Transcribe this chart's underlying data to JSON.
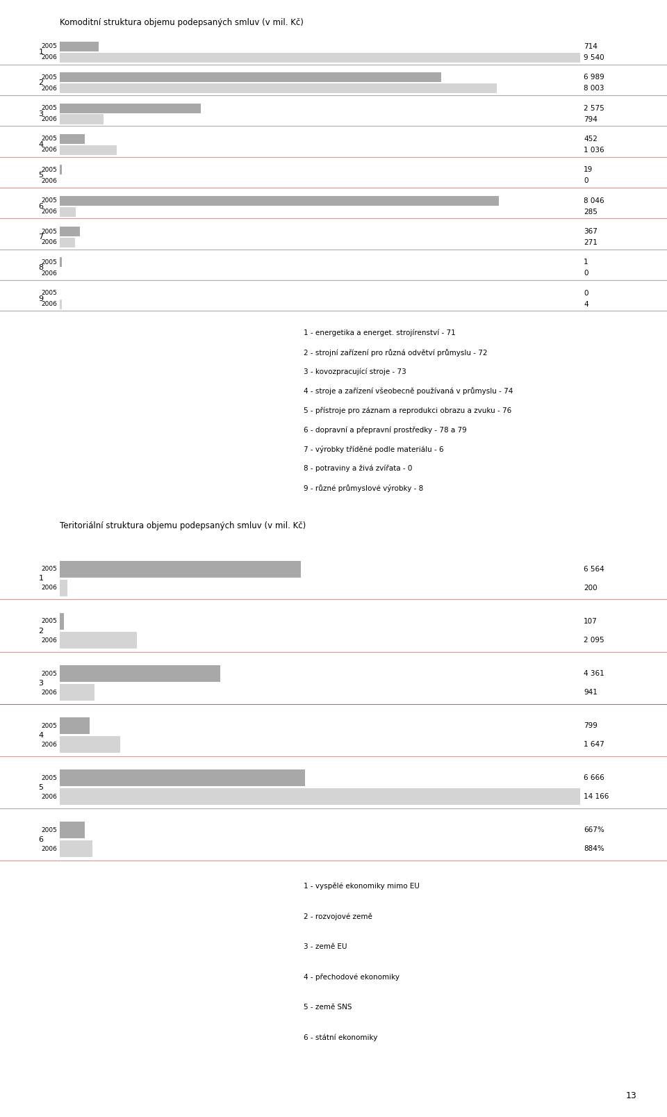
{
  "title1": "Komoditní struktura objemu podepsaných smluv (v mil. Kč)",
  "title2": "Teritoriální struktura objemu podepsaných smluv (v mil. Kč)",
  "chart1": {
    "categories": [
      1,
      2,
      3,
      4,
      5,
      6,
      7,
      8,
      9
    ],
    "values_2005": [
      714,
      6989,
      2575,
      452,
      19,
      8046,
      367,
      1,
      0
    ],
    "values_2006": [
      9540,
      8003,
      794,
      1036,
      0,
      285,
      271,
      0,
      4
    ],
    "labels_2005": [
      "714",
      "6 989",
      "2 575",
      "452",
      "19",
      "8 046",
      "367",
      "1",
      "0"
    ],
    "labels_2006": [
      "9 540",
      "8 003",
      "794",
      "1 036",
      "0",
      "285",
      "271",
      "0",
      "4"
    ]
  },
  "chart2": {
    "categories": [
      1,
      2,
      3,
      4,
      5,
      6
    ],
    "values_2005": [
      6564,
      107,
      4361,
      799,
      6666,
      667
    ],
    "values_2006": [
      200,
      2095,
      941,
      1647,
      14166,
      884
    ],
    "labels_2005": [
      "6 564",
      "107",
      "4 361",
      "799",
      "6 666",
      "667%"
    ],
    "labels_2006": [
      "200",
      "2 095",
      "941",
      "1 647",
      "14 166",
      "884%"
    ]
  },
  "legend1": [
    "1 - energetika a energet. strojírenství - 71",
    "2 - strojní zařízení pro různá odvětví průmyslu - 72",
    "3 - kovozpracující stroje - 73",
    "4 - stroje a zařízení všeobecně používaná v průmyslu - 74",
    "5 - přístroje pro záznam a reprodukci obrazu a zvuku - 76",
    "6 - dopravní a přepravní prostředky - 78 a 79",
    "7 - výrobky tříděné podle materiálu - 6",
    "8 - potraviny a živá zvířata - 0",
    "9 - různé průmyslové výrobky - 8"
  ],
  "legend2": [
    "1 - vyspělé ekonomiky mimo EU",
    "2 - rozvojové země",
    "3 - země EU",
    "4 - přechodové ekonomiky",
    "5 - země SNS",
    "6 - státní ekonomiky"
  ],
  "max_val1": 9540,
  "max_val2": 14166,
  "color_2005": "#a8a8a8",
  "color_2006": "#d4d4d4",
  "separator_color": "#c8a0a0",
  "separator_color_red": "#cc6666",
  "bg_color": "#ffffff",
  "page_number": "13"
}
